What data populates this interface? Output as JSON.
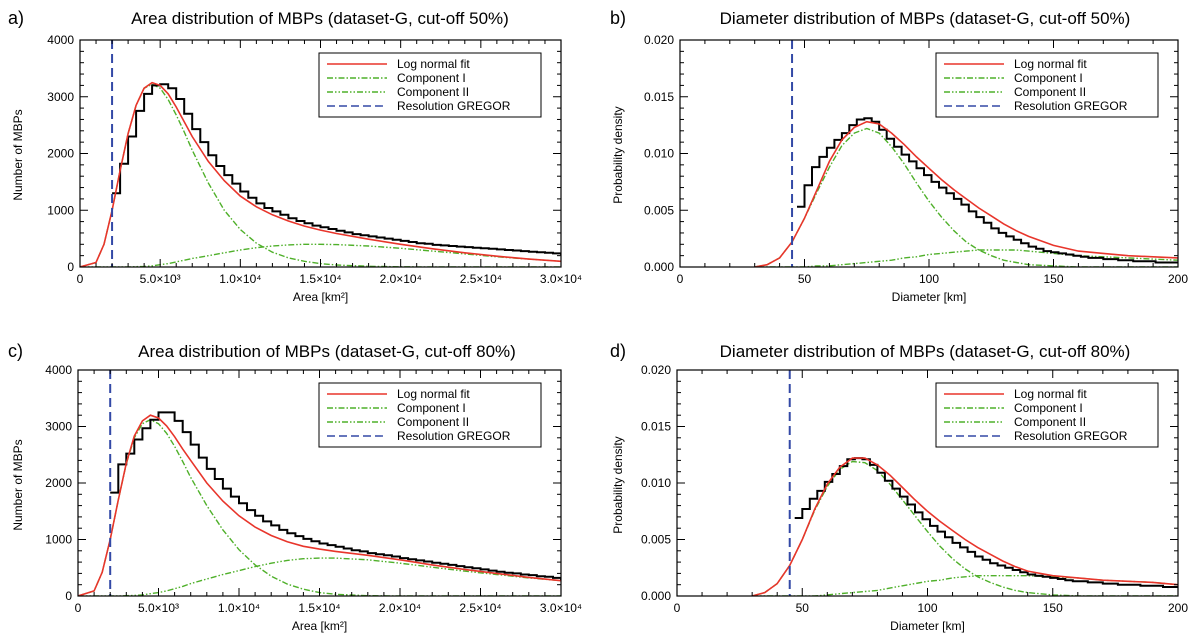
{
  "figure": {
    "colors": {
      "histogram": "#000000",
      "fit": "#e8352b",
      "component": "#4fb02a",
      "resolution": "#3349a6"
    },
    "legend_labels": [
      "Log normal fit",
      "Component I",
      "Component II",
      "Resolution GREGOR"
    ]
  },
  "chart_data": [
    {
      "id": "a",
      "panel_label": "a)",
      "type": "line",
      "title": "Area distribution of MBPs (dataset-G, cut-off 50%)",
      "xlabel": "Area [km²]",
      "ylabel": "Number of MBPs",
      "xlim": [
        0,
        30000
      ],
      "ylim": [
        0,
        4000
      ],
      "xticks": [
        0,
        5000,
        10000,
        15000,
        20000,
        25000,
        30000
      ],
      "xtick_labels": [
        "0",
        "5.0×10³",
        "1.0×10⁴",
        "1.5×10⁴",
        "2.0×10⁴",
        "2.5×10⁴",
        "3.0×10⁴"
      ],
      "yticks": [
        0,
        1000,
        2000,
        3000,
        4000
      ],
      "ytick_labels": [
        "0",
        "1000",
        "2000",
        "3000",
        "4000"
      ],
      "legend_position": "top-right",
      "resolution_x": 2000,
      "histogram": {
        "bin_width": 500,
        "bin_start": 2000,
        "values": [
          1300,
          1820,
          2300,
          2750,
          3050,
          3200,
          3220,
          3150,
          2960,
          2700,
          2430,
          2200,
          1970,
          1780,
          1620,
          1470,
          1330,
          1220,
          1120,
          1040,
          980,
          920,
          860,
          810,
          770,
          730,
          700,
          670,
          640,
          610,
          580,
          560,
          540,
          520,
          500,
          480,
          460,
          440,
          420,
          410,
          390,
          380,
          370,
          360,
          350,
          340,
          330,
          320,
          310,
          300,
          290,
          280,
          270,
          260,
          250,
          240,
          230,
          220
        ]
      },
      "fit": {
        "x": [
          0,
          1000,
          1500,
          2000,
          2500,
          3000,
          3500,
          4000,
          4500,
          5000,
          5500,
          6000,
          6500,
          7000,
          8000,
          9000,
          10000,
          11000,
          12000,
          13000,
          14000,
          15000,
          16000,
          18000,
          20000,
          22000,
          24000,
          26000,
          28000,
          30000
        ],
        "log_normal": [
          0,
          80,
          400,
          1000,
          1700,
          2350,
          2850,
          3150,
          3250,
          3200,
          3050,
          2820,
          2560,
          2300,
          1860,
          1520,
          1250,
          1060,
          920,
          810,
          720,
          650,
          590,
          490,
          400,
          320,
          250,
          190,
          140,
          100
        ],
        "component1": [
          0,
          80,
          400,
          1000,
          1700,
          2350,
          2850,
          3150,
          3220,
          3150,
          2950,
          2680,
          2380,
          2060,
          1480,
          1000,
          660,
          420,
          260,
          160,
          100,
          60,
          35,
          12,
          4,
          0,
          0,
          0,
          0,
          0
        ],
        "component2": [
          0,
          0,
          0,
          0,
          0,
          0,
          5,
          10,
          20,
          40,
          60,
          90,
          120,
          150,
          200,
          250,
          300,
          340,
          370,
          390,
          400,
          400,
          395,
          370,
          330,
          280,
          230,
          180,
          140,
          100
        ]
      }
    },
    {
      "id": "b",
      "panel_label": "b)",
      "type": "line",
      "title": "Diameter distribution of MBPs (dataset-G, cut-off 50%)",
      "xlabel": "Diameter [km]",
      "ylabel": "Probability density",
      "xlim": [
        0,
        200
      ],
      "ylim": [
        0,
        0.02
      ],
      "xticks": [
        0,
        50,
        100,
        150,
        200
      ],
      "xtick_labels": [
        "0",
        "50",
        "100",
        "150",
        "200"
      ],
      "yticks": [
        0,
        0.005,
        0.01,
        0.015,
        0.02
      ],
      "ytick_labels": [
        "0.000",
        "0.005",
        "0.010",
        "0.015",
        "0.020"
      ],
      "legend_position": "top-right",
      "resolution_x": 45,
      "histogram": {
        "bin_width": 3,
        "bin_start": 47,
        "values": [
          0.0053,
          0.0072,
          0.0088,
          0.0097,
          0.0105,
          0.0112,
          0.0118,
          0.0125,
          0.013,
          0.0131,
          0.0128,
          0.0121,
          0.0113,
          0.0106,
          0.0099,
          0.0093,
          0.0087,
          0.0081,
          0.0075,
          0.007,
          0.0065,
          0.006,
          0.0055,
          0.0049,
          0.0044,
          0.0039,
          0.0034,
          0.003,
          0.0027,
          0.0024,
          0.0021,
          0.0018,
          0.0016,
          0.0014,
          0.0013,
          0.0012,
          0.0011,
          0.001,
          0.0009,
          0.0008,
          0.0008,
          0.0007,
          0.0007,
          0.0006,
          0.0006,
          0.0005,
          0.0005,
          0.0005,
          0.0004,
          0.0004,
          0.0004
        ]
      },
      "fit": {
        "x": [
          30,
          35,
          40,
          45,
          50,
          55,
          60,
          65,
          70,
          75,
          80,
          85,
          90,
          95,
          100,
          105,
          110,
          115,
          120,
          125,
          130,
          135,
          140,
          150,
          160,
          170,
          180,
          190,
          200
        ],
        "log_normal": [
          0,
          0.0002,
          0.0008,
          0.0022,
          0.0043,
          0.0068,
          0.0093,
          0.0112,
          0.0123,
          0.0128,
          0.0126,
          0.0118,
          0.0108,
          0.0097,
          0.0087,
          0.0077,
          0.0068,
          0.006,
          0.0052,
          0.0045,
          0.0038,
          0.0032,
          0.0027,
          0.0019,
          0.0014,
          0.0012,
          0.001,
          0.0009,
          0.0008
        ],
        "component1": [
          0,
          0.0002,
          0.0008,
          0.0022,
          0.0043,
          0.0066,
          0.0088,
          0.0107,
          0.0118,
          0.0122,
          0.0118,
          0.0106,
          0.0091,
          0.0074,
          0.0058,
          0.0044,
          0.0032,
          0.0022,
          0.0015,
          0.001,
          0.0006,
          0.0004,
          0.0002,
          0.0001,
          0,
          0,
          0,
          0,
          0
        ],
        "component2": [
          0,
          0,
          0,
          0,
          0,
          0.0001,
          0.0001,
          0.0002,
          0.0003,
          0.0004,
          0.0005,
          0.0006,
          0.0008,
          0.0009,
          0.0011,
          0.0012,
          0.0013,
          0.0014,
          0.0015,
          0.0015,
          0.0015,
          0.0015,
          0.0014,
          0.0012,
          0.001,
          0.0009,
          0.0008,
          0.0007,
          0.0006
        ]
      }
    },
    {
      "id": "c",
      "panel_label": "c)",
      "type": "line",
      "title": "Area distribution of MBPs (dataset-G, cut-off 80%)",
      "xlabel": "Area [km²]",
      "ylabel": "Number of MBPs",
      "xlim": [
        0,
        30000
      ],
      "ylim": [
        0,
        4000
      ],
      "xticks": [
        0,
        5000,
        10000,
        15000,
        20000,
        25000,
        30000
      ],
      "xtick_labels": [
        "0",
        "5.0×10³",
        "1.0×10⁴",
        "1.5×10⁴",
        "2.0×10⁴",
        "2.5×10⁴",
        "3.0×10⁴"
      ],
      "yticks": [
        0,
        1000,
        2000,
        3000,
        4000
      ],
      "ytick_labels": [
        "0",
        "1000",
        "2000",
        "3000",
        "4000"
      ],
      "legend_position": "top-right",
      "resolution_x": 2000,
      "histogram": {
        "bin_width": 500,
        "bin_start": 2000,
        "values": [
          1830,
          2330,
          2520,
          2770,
          2970,
          3120,
          3250,
          3250,
          3100,
          2900,
          2680,
          2450,
          2250,
          2070,
          1900,
          1760,
          1640,
          1520,
          1420,
          1320,
          1250,
          1170,
          1110,
          1060,
          1010,
          970,
          930,
          900,
          870,
          840,
          810,
          790,
          760,
          740,
          720,
          700,
          670,
          650,
          630,
          610,
          590,
          570,
          550,
          530,
          510,
          490,
          470,
          450,
          430,
          410,
          400,
          380,
          370,
          350,
          340,
          320,
          300,
          290
        ]
      },
      "fit": {
        "x": [
          0,
          1000,
          1500,
          2000,
          2500,
          3000,
          3500,
          4000,
          4500,
          5000,
          5500,
          6000,
          6500,
          7000,
          8000,
          9000,
          10000,
          11000,
          12000,
          13000,
          14000,
          15000,
          16000,
          18000,
          20000,
          22000,
          24000,
          26000,
          28000,
          30000
        ],
        "log_normal": [
          0,
          90,
          420,
          1000,
          1700,
          2350,
          2830,
          3100,
          3200,
          3150,
          3010,
          2820,
          2600,
          2400,
          2000,
          1680,
          1420,
          1220,
          1070,
          960,
          880,
          830,
          790,
          720,
          640,
          550,
          470,
          400,
          330,
          270
        ],
        "component1": [
          0,
          90,
          420,
          1000,
          1700,
          2340,
          2800,
          3050,
          3120,
          3050,
          2880,
          2650,
          2380,
          2100,
          1600,
          1170,
          820,
          550,
          350,
          210,
          120,
          60,
          30,
          5,
          0,
          0,
          0,
          0,
          0,
          0
        ],
        "component2": [
          0,
          0,
          0,
          0,
          0,
          5,
          10,
          20,
          40,
          60,
          90,
          130,
          170,
          220,
          300,
          380,
          450,
          520,
          580,
          630,
          660,
          670,
          670,
          640,
          580,
          510,
          440,
          380,
          320,
          270
        ]
      }
    },
    {
      "id": "d",
      "panel_label": "d)",
      "type": "line",
      "title": "Diameter distribution of MBPs (dataset-G, cut-off 80%)",
      "xlabel": "Diameter [km]",
      "ylabel": "Probability density",
      "xlim": [
        0,
        200
      ],
      "ylim": [
        0,
        0.02
      ],
      "xticks": [
        0,
        50,
        100,
        150,
        200
      ],
      "xtick_labels": [
        "0",
        "50",
        "100",
        "150",
        "200"
      ],
      "yticks": [
        0,
        0.005,
        0.01,
        0.015,
        0.02
      ],
      "ytick_labels": [
        "0.000",
        "0.005",
        "0.010",
        "0.015",
        "0.020"
      ],
      "legend_position": "top-right",
      "resolution_x": 45,
      "histogram": {
        "bin_width": 3,
        "bin_start": 47,
        "values": [
          0.0069,
          0.0077,
          0.0086,
          0.0093,
          0.0101,
          0.0108,
          0.0115,
          0.0121,
          0.0122,
          0.0121,
          0.0116,
          0.0109,
          0.0102,
          0.0095,
          0.0088,
          0.0081,
          0.0074,
          0.0068,
          0.0062,
          0.0057,
          0.0052,
          0.0047,
          0.0043,
          0.0039,
          0.0035,
          0.0032,
          0.0029,
          0.0027,
          0.0025,
          0.0023,
          0.0021,
          0.0019,
          0.0018,
          0.0017,
          0.0016,
          0.0015,
          0.0014,
          0.0013,
          0.0013,
          0.0012,
          0.0012,
          0.0011,
          0.0011,
          0.001,
          0.001,
          0.001,
          0.0009,
          0.0009,
          0.0009,
          0.0008,
          0.0008
        ]
      },
      "fit": {
        "x": [
          30,
          35,
          40,
          45,
          50,
          55,
          60,
          65,
          70,
          75,
          80,
          85,
          90,
          95,
          100,
          105,
          110,
          115,
          120,
          125,
          130,
          135,
          140,
          150,
          160,
          170,
          180,
          190,
          200
        ],
        "log_normal": [
          0,
          0.0003,
          0.0011,
          0.0027,
          0.005,
          0.0077,
          0.0099,
          0.0114,
          0.0122,
          0.0122,
          0.0116,
          0.0107,
          0.0096,
          0.0085,
          0.0075,
          0.0066,
          0.0058,
          0.005,
          0.0043,
          0.0037,
          0.0031,
          0.0026,
          0.0022,
          0.0018,
          0.0016,
          0.0014,
          0.0013,
          0.0012,
          0.001
        ],
        "component1": [
          0,
          0.0003,
          0.0011,
          0.0027,
          0.005,
          0.0076,
          0.0097,
          0.0112,
          0.0119,
          0.0118,
          0.0111,
          0.0099,
          0.0085,
          0.0071,
          0.0057,
          0.0044,
          0.0033,
          0.0024,
          0.0017,
          0.0012,
          0.0008,
          0.0005,
          0.0003,
          0.0001,
          0,
          0,
          0,
          0,
          0
        ],
        "component2": [
          0,
          0,
          0,
          0,
          0,
          0,
          0.0001,
          0.0002,
          0.0003,
          0.0004,
          0.0005,
          0.0007,
          0.0009,
          0.0011,
          0.0013,
          0.0014,
          0.0016,
          0.0017,
          0.0018,
          0.0018,
          0.0018,
          0.0018,
          0.0018,
          0.0017,
          0.0016,
          0.0014,
          0.0013,
          0.0012,
          0.001
        ]
      }
    }
  ]
}
